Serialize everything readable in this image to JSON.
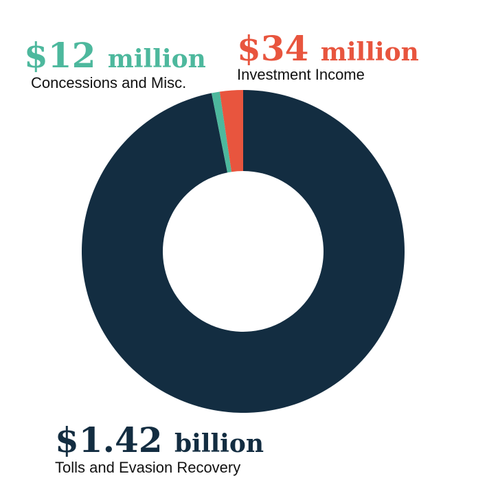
{
  "chart_data": {
    "type": "donut",
    "categories": [
      "Tolls and Evasion Recovery",
      "Concessions and Misc.",
      "Investment Income"
    ],
    "values": [
      1420000000,
      12000000,
      34000000
    ],
    "value_labels": [
      "$1.42 billion",
      "$12 million",
      "$34 million"
    ],
    "colors": [
      "#132d41",
      "#4db89d",
      "#e8553e"
    ]
  }
}
